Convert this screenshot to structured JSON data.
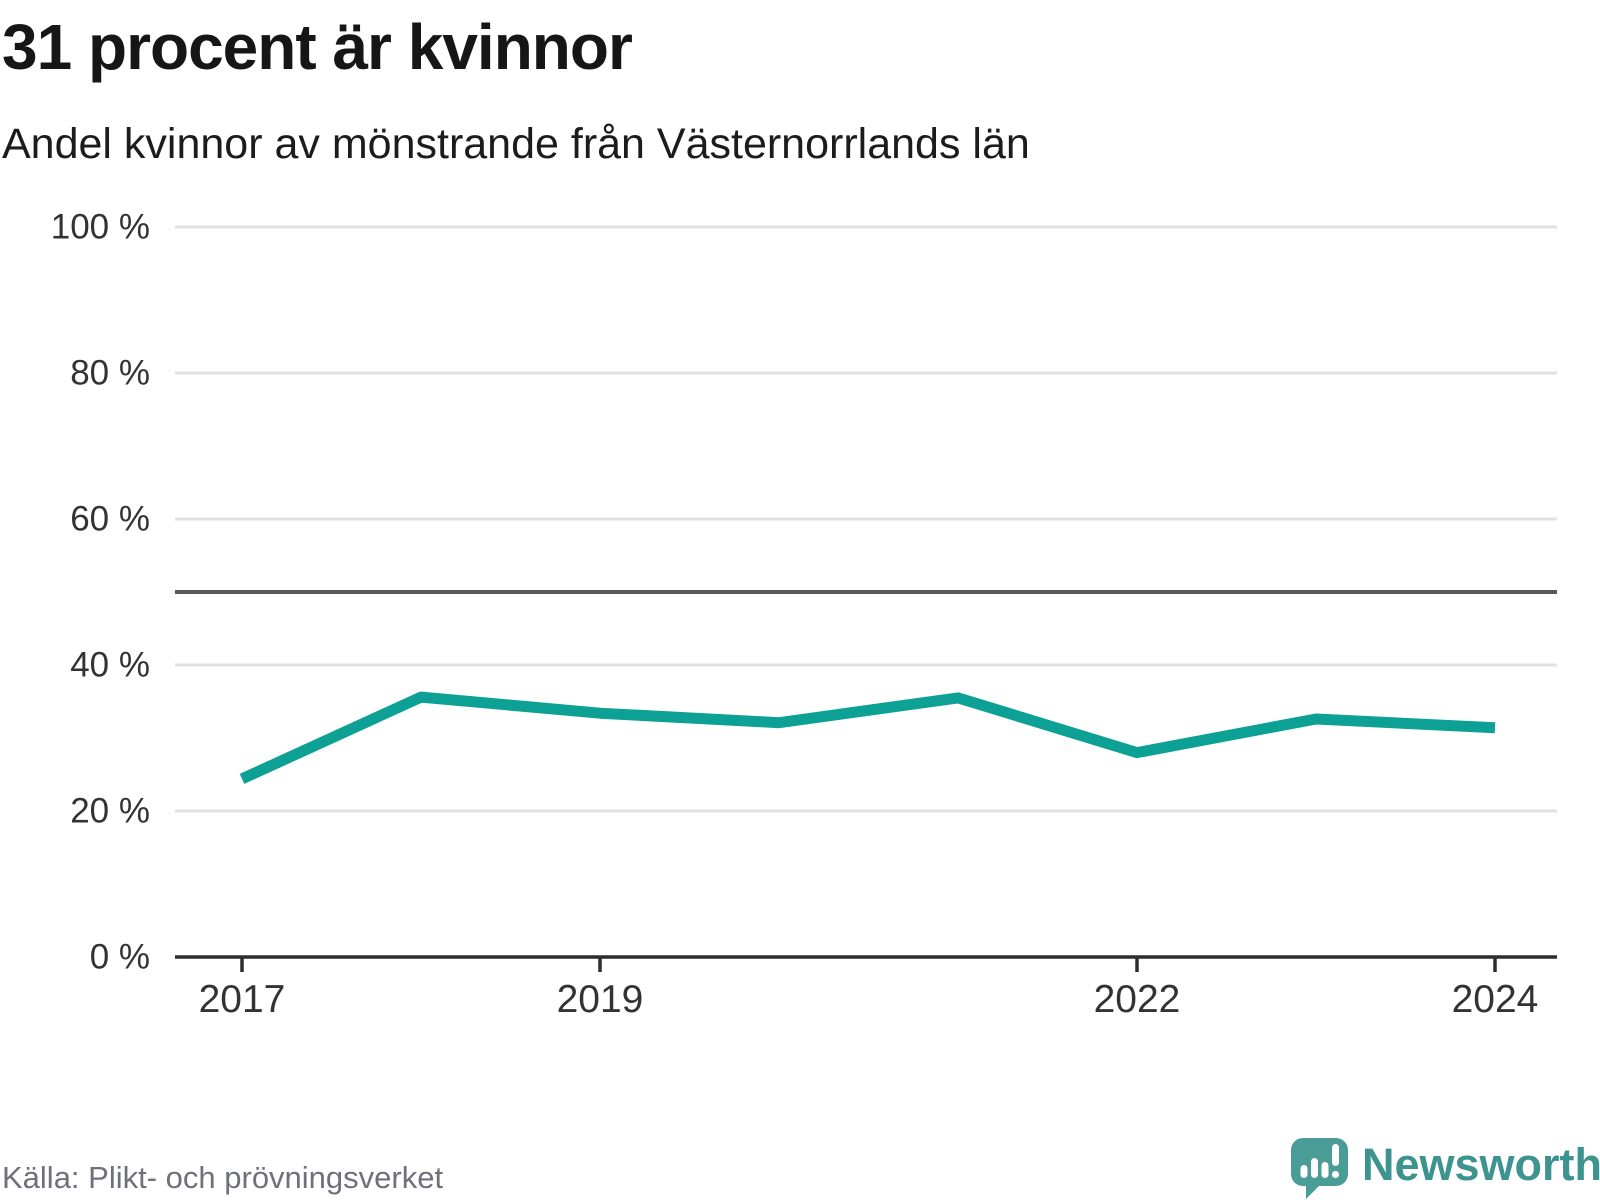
{
  "header": {
    "title": "31 procent är kvinnor",
    "subtitle": "Andel kvinnor av mönstrande från Västernorrlands län"
  },
  "footer": {
    "source": "Källa: Plikt- och prövningsverket",
    "brand": "Newsworthy"
  },
  "chart_data": {
    "type": "line",
    "title": "31 procent är kvinnor",
    "subtitle": "Andel kvinnor av mönstrande från Västernorrlands län",
    "x": [
      2017,
      2018,
      2019,
      2020,
      2021,
      2022,
      2023,
      2024
    ],
    "series": [
      {
        "name": "Andel kvinnor av mönstrande",
        "values": [
          24.4,
          35.6,
          33.4,
          32.1,
          35.5,
          28.0,
          32.6,
          31.4
        ]
      }
    ],
    "ylim": [
      0,
      100
    ],
    "yticks": [
      0,
      20,
      40,
      60,
      80,
      100
    ],
    "ytick_labels": [
      "0 %",
      "20 %",
      "40 %",
      "60 %",
      "80 %",
      "100 %"
    ],
    "xticks": [
      2017,
      2019,
      2022,
      2024
    ],
    "xtick_labels": [
      "2017",
      "2019",
      "2022",
      "2024"
    ],
    "reference_line": 50,
    "grid": true,
    "legend": "none",
    "colors": {
      "line": "#0da196",
      "grid": "#e1e1e1",
      "axis": "#2d2d2d",
      "reference": "#585862",
      "tick_label": "#333333"
    },
    "source": "Källa: Plikt- och prövningsverket"
  },
  "brand_colors": {
    "logo": "#4a9c96",
    "wordmark": "#3d938d"
  }
}
